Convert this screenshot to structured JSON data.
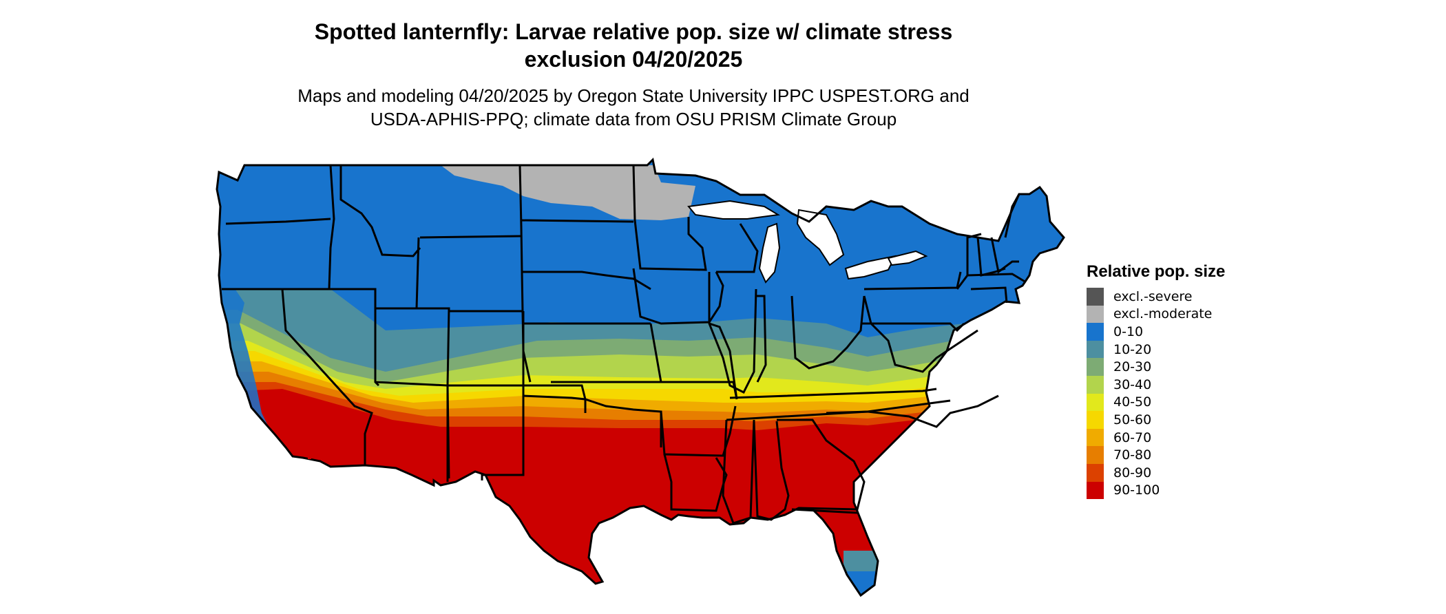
{
  "title_line1": "Spotted lanternfly: Larvae relative pop. size w/ climate stress",
  "title_line2": "exclusion 04/20/2025",
  "subtitle_line1": "Maps and modeling 04/20/2025 by Oregon State University IPPC USPEST.ORG and",
  "subtitle_line2": "USDA-APHIS-PPQ; climate data from OSU PRISM Climate Group",
  "legend": {
    "title": "Relative pop. size",
    "items": [
      {
        "label": "excl.-severe",
        "color": "#555555"
      },
      {
        "label": "excl.-moderate",
        "color": "#b3b3b3"
      },
      {
        "label": "0-10",
        "color": "#1874cd"
      },
      {
        "label": "10-20",
        "color": "#4d8fa0"
      },
      {
        "label": "20-30",
        "color": "#7dab74"
      },
      {
        "label": "30-40",
        "color": "#b2d44c"
      },
      {
        "label": "40-50",
        "color": "#e2e81c"
      },
      {
        "label": "50-60",
        "color": "#f6d800"
      },
      {
        "label": "60-70",
        "color": "#f0ab00"
      },
      {
        "label": "70-80",
        "color": "#e77e00"
      },
      {
        "label": "80-90",
        "color": "#dc4100"
      },
      {
        "label": "90-100",
        "color": "#cc0000"
      }
    ]
  },
  "map_colors": {
    "water": "#ffffff",
    "border": "#000000"
  }
}
